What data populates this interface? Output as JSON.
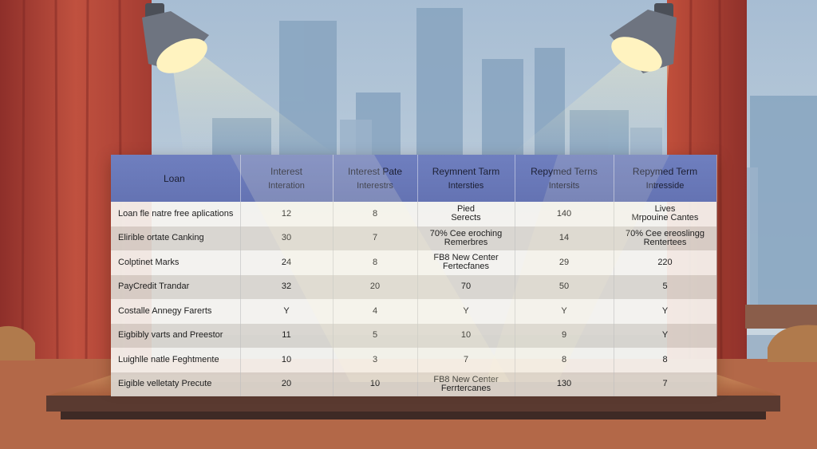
{
  "table": {
    "headers": [
      {
        "line1": "Loan",
        "line2": ""
      },
      {
        "line1": "Interest",
        "line2": "Interation"
      },
      {
        "line1": "Interest Pate",
        "line2": "Interestrs"
      },
      {
        "line1": "Reymnent Tarm",
        "line2": "Intersties"
      },
      {
        "line1": "Repymed Terns",
        "line2": "Intersits"
      },
      {
        "line1": "Repymed Term",
        "line2": "Intresside"
      }
    ],
    "rows": [
      [
        "Loan fle natre free aplications",
        "12",
        "8",
        "Pied\nSerects",
        "140",
        "Lives\nMrpouine Cantes"
      ],
      [
        "Elirible ortate Canking",
        "30",
        "7",
        "70% Cee eroching\nRemerbres",
        "14",
        "70% Cee ereoslingg\nRentertees"
      ],
      [
        "Colptinet Marks",
        "24",
        "8",
        "FB8 New Center\nFertecfanes",
        "29",
        "220"
      ],
      [
        "PayCredit Trandar",
        "32",
        "20",
        "70",
        "50",
        "5"
      ],
      [
        "Costalle Annegy Farerts",
        "Y",
        "4",
        "Y",
        "Y",
        "Y"
      ],
      [
        "Eigbibly varts and Preestor",
        "11",
        "5",
        "10",
        "9",
        "Y"
      ],
      [
        "Luighlle natle Feghtmente",
        "10",
        "3",
        "7",
        "8",
        "8"
      ],
      [
        "Eigible velletaty Precute",
        "20",
        "10",
        "FB8 New Center\nFerrtercanes",
        "130",
        "7"
      ]
    ]
  },
  "colors": {
    "header": "#6a79b9",
    "curtain": "#b8453a",
    "sky": "#a9c0d6",
    "desk": "#d08a5a"
  }
}
